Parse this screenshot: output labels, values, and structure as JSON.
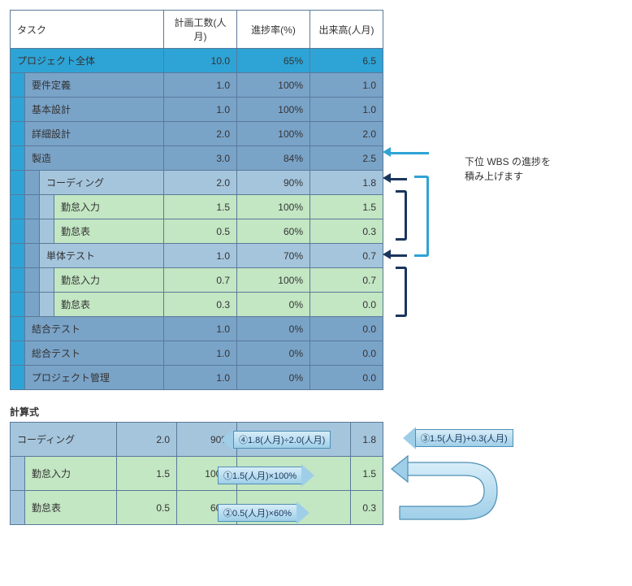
{
  "colors": {
    "border": "#5a7a9a",
    "bright": "#2ea3d6",
    "blue2": "#7aa3c8",
    "blue3": "#a5c5dd",
    "green1": "#c3e6c3",
    "bracketDark": "#1b365d",
    "arrowFillTop": "#d7edf8",
    "arrowFillBottom": "#9fcfe8"
  },
  "typography": {
    "body_fontsize_pt": 9,
    "title_fontsize_pt": 10,
    "fontfamily": "Meiryo"
  },
  "headers": {
    "task": "タスク",
    "plan": "計画工数(人月)",
    "progress": "進捗率(%)",
    "earned": "出来高(人月)"
  },
  "rows": [
    {
      "indent": 0,
      "label": "プロジェクト全体",
      "plan": "10.0",
      "progress": "65%",
      "earned": "6.5",
      "style": "bright"
    },
    {
      "indent": 1,
      "label": "要件定義",
      "plan": "1.0",
      "progress": "100%",
      "earned": "1.0",
      "style": "blue2"
    },
    {
      "indent": 1,
      "label": "基本設計",
      "plan": "1.0",
      "progress": "100%",
      "earned": "1.0",
      "style": "blue2"
    },
    {
      "indent": 1,
      "label": "詳細設計",
      "plan": "2.0",
      "progress": "100%",
      "earned": "2.0",
      "style": "blue2"
    },
    {
      "indent": 1,
      "label": "製造",
      "plan": "3.0",
      "progress": "84%",
      "earned": "2.5",
      "style": "blue2"
    },
    {
      "indent": 2,
      "label": "コーディング",
      "plan": "2.0",
      "progress": "90%",
      "earned": "1.8",
      "style": "blue3"
    },
    {
      "indent": 3,
      "label": "勤怠入力",
      "plan": "1.5",
      "progress": "100%",
      "earned": "1.5",
      "style": "green1"
    },
    {
      "indent": 3,
      "label": "勤怠表",
      "plan": "0.5",
      "progress": "60%",
      "earned": "0.3",
      "style": "green1"
    },
    {
      "indent": 2,
      "label": "単体テスト",
      "plan": "1.0",
      "progress": "70%",
      "earned": "0.7",
      "style": "blue3"
    },
    {
      "indent": 3,
      "label": "勤怠入力",
      "plan": "0.7",
      "progress": "100%",
      "earned": "0.7",
      "style": "green1"
    },
    {
      "indent": 3,
      "label": "勤怠表",
      "plan": "0.3",
      "progress": "0%",
      "earned": "0.0",
      "style": "green1"
    },
    {
      "indent": 1,
      "label": "結合テスト",
      "plan": "1.0",
      "progress": "0%",
      "earned": "0.0",
      "style": "blue2"
    },
    {
      "indent": 1,
      "label": "総合テスト",
      "plan": "1.0",
      "progress": "0%",
      "earned": "0.0",
      "style": "blue2"
    },
    {
      "indent": 1,
      "label": "プロジェクト管理",
      "plan": "1.0",
      "progress": "0%",
      "earned": "0.0",
      "style": "blue2"
    }
  ],
  "annotation": {
    "line1": "下位 WBS の進捗を",
    "line2": "積み上げます"
  },
  "calc": {
    "title": "計算式",
    "rows": [
      {
        "indent": 0,
        "label": "コーディング",
        "plan": "2.0",
        "progress": "90%",
        "earned": "1.8",
        "style": "blue3"
      },
      {
        "indent": 1,
        "label": "勤怠入力",
        "plan": "1.5",
        "progress": "100%",
        "earned": "1.5",
        "style": "green1"
      },
      {
        "indent": 1,
        "label": "勤怠表",
        "plan": "0.5",
        "progress": "60%",
        "earned": "0.3",
        "style": "green1"
      }
    ],
    "arrows": {
      "a4": "④1.8(人月)÷2.0(人月)",
      "a1": "①1.5(人月)×100%",
      "a2": "②0.5(人月)×60%",
      "a3": "③1.5(人月)+0.3(人月)"
    }
  }
}
